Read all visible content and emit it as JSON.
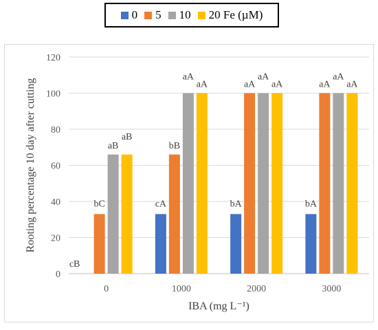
{
  "chart_data": {
    "type": "bar",
    "categories": [
      "0",
      "1000",
      "2000",
      "3000"
    ],
    "series": [
      {
        "name": "0",
        "color": "#4472C4",
        "values": [
          0,
          33,
          33,
          33
        ],
        "labels": [
          "cB",
          "cA",
          "bA",
          "bA"
        ]
      },
      {
        "name": "5",
        "color": "#ED7D31",
        "values": [
          33,
          66,
          100,
          100
        ],
        "labels": [
          "bC",
          "bB",
          "aA",
          "aA"
        ]
      },
      {
        "name": "10",
        "color": "#A5A5A5",
        "values": [
          66,
          100,
          100,
          100
        ],
        "labels": [
          "aB",
          "aA",
          "aA",
          "aA"
        ]
      },
      {
        "name": "20 Fe (µM)",
        "color": "#FFC000",
        "values": [
          66,
          100,
          100,
          100
        ],
        "labels": [
          "aB",
          "aA",
          "aA",
          "aA"
        ]
      }
    ],
    "title": "",
    "xlabel": "IBA (mg L⁻¹)",
    "ylabel": "Rooting percentage 10 day after cutting",
    "ylim": [
      0,
      120
    ],
    "yticks": [
      "0",
      "20",
      "40",
      "60",
      "80",
      "100",
      "120"
    ],
    "grid": true,
    "legend_position": "top"
  }
}
